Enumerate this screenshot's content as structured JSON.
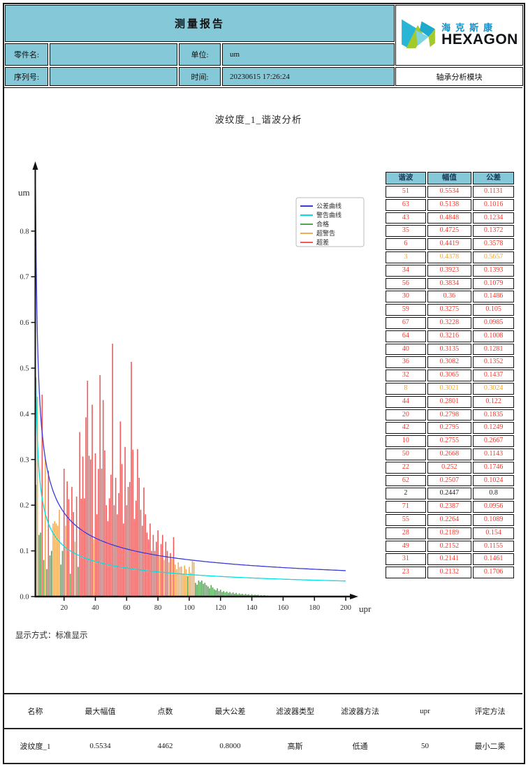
{
  "header": {
    "title": "测量报告",
    "logo": {
      "cn": "海克斯康",
      "en": "HEXAGON"
    },
    "fields": [
      {
        "label": "零件名:",
        "value": ""
      },
      {
        "label": "单位:",
        "value": "um"
      },
      {
        "label": "序列号:",
        "value": ""
      },
      {
        "label": "时间:",
        "value": "20230615 17:26:24"
      }
    ],
    "module": "轴承分析模块"
  },
  "display_mode": "显示方式：标准显示",
  "harmonic_table": {
    "headers": [
      "谐波",
      "幅值",
      "公差"
    ],
    "rows": [
      [
        "51",
        "0.5534",
        "0.1131",
        "over_tolerance"
      ],
      [
        "63",
        "0.5138",
        "0.1016",
        "over_tolerance"
      ],
      [
        "43",
        "0.4848",
        "0.1234",
        "over_tolerance"
      ],
      [
        "35",
        "0.4725",
        "0.1372",
        "over_tolerance"
      ],
      [
        "6",
        "0.4419",
        "0.3578",
        "over_tolerance"
      ],
      [
        "3",
        "0.4378",
        "0.5657",
        "over_warning"
      ],
      [
        "34",
        "0.3923",
        "0.1393",
        "over_tolerance"
      ],
      [
        "56",
        "0.3834",
        "0.1079",
        "over_tolerance"
      ],
      [
        "30",
        "0.36",
        "0.1486",
        "over_tolerance"
      ],
      [
        "59",
        "0.3275",
        "0.105",
        "over_tolerance"
      ],
      [
        "67",
        "0.3228",
        "0.0985",
        "over_tolerance"
      ],
      [
        "64",
        "0.3216",
        "0.1008",
        "over_tolerance"
      ],
      [
        "40",
        "0.3135",
        "0.1281",
        "over_tolerance"
      ],
      [
        "36",
        "0.3082",
        "0.1352",
        "over_tolerance"
      ],
      [
        "32",
        "0.3065",
        "0.1437",
        "over_tolerance"
      ],
      [
        "8",
        "0.3021",
        "0.3024",
        "over_warning"
      ],
      [
        "44",
        "0.2801",
        "0.122",
        "over_tolerance"
      ],
      [
        "20",
        "0.2798",
        "0.1835",
        "over_tolerance"
      ],
      [
        "42",
        "0.2795",
        "0.1249",
        "over_tolerance"
      ],
      [
        "10",
        "0.2755",
        "0.2667",
        "over_tolerance"
      ],
      [
        "50",
        "0.2668",
        "0.1143",
        "over_tolerance"
      ],
      [
        "22",
        "0.252",
        "0.1746",
        "over_tolerance"
      ],
      [
        "62",
        "0.2507",
        "0.1024",
        "over_tolerance"
      ],
      [
        "2",
        "0.2447",
        "0.8",
        "pass"
      ],
      [
        "71",
        "0.2387",
        "0.0956",
        "over_tolerance"
      ],
      [
        "55",
        "0.2264",
        "0.1089",
        "over_tolerance"
      ],
      [
        "28",
        "0.2189",
        "0.154",
        "over_tolerance"
      ],
      [
        "49",
        "0.2152",
        "0.1155",
        "over_tolerance"
      ],
      [
        "31",
        "0.2141",
        "0.1461",
        "over_tolerance"
      ],
      [
        "23",
        "0.2132",
        "0.1706",
        "over_tolerance"
      ]
    ]
  },
  "summary_table": {
    "headers": [
      "名称",
      "最大幅值",
      "点数",
      "最大公差",
      "滤波器类型",
      "滤波器方法",
      "upr",
      "评定方法"
    ],
    "row": [
      "波纹度_1",
      "0.5534",
      "4462",
      "0.8000",
      "高斯",
      "低通",
      "50",
      "最小二乘"
    ]
  },
  "chart_data": {
    "type": "bar",
    "title": "波纹度_1_谐波分析",
    "xlabel": "upr",
    "ylabel": "um",
    "xlim": [
      0,
      200
    ],
    "ylim": [
      0,
      0.9
    ],
    "x_ticks": [
      20,
      40,
      60,
      80,
      100,
      120,
      140,
      160,
      180,
      200
    ],
    "y_tick_labels": [
      "0.0",
      "0.1",
      "0.2",
      "0.3",
      "0.4",
      "0.5",
      "0.6",
      "0.7",
      "0.8"
    ],
    "legend": [
      {
        "label": "公差曲线",
        "color": "#3a3ad9"
      },
      {
        "label": "警告曲线",
        "color": "#00e2e2"
      },
      {
        "label": "合格",
        "color": "#55a355"
      },
      {
        "label": "超警告",
        "color": "#f3ab57"
      },
      {
        "label": "超差",
        "color": "#ef5b5b"
      }
    ],
    "tolerance_curve": {
      "formula": "T(n)=max_tolerance/sqrt(n-1)",
      "max_tolerance": 0.8,
      "color": "#3a3ad9"
    },
    "warning_curve": {
      "formula": "W(n)=ratio*T(n)",
      "ratio": 0.6,
      "color": "#00e2e2"
    },
    "bar_colors": {
      "pass": "#55a355",
      "over_warning": "#f3ab57",
      "over_tolerance": "#ef5b5b"
    },
    "bars": [
      [
        2,
        0.2447
      ],
      [
        3,
        0.4378
      ],
      [
        4,
        0.135
      ],
      [
        5,
        0.14
      ],
      [
        6,
        0.4419
      ],
      [
        7,
        0.08
      ],
      [
        8,
        0.3021
      ],
      [
        9,
        0.06
      ],
      [
        10,
        0.2755
      ],
      [
        11,
        0.09
      ],
      [
        12,
        0.1
      ],
      [
        13,
        0.16
      ],
      [
        14,
        0.165
      ],
      [
        15,
        0.16
      ],
      [
        16,
        0.155
      ],
      [
        17,
        0.19
      ],
      [
        18,
        0.07
      ],
      [
        19,
        0.1
      ],
      [
        20,
        0.2798
      ],
      [
        21,
        0.155
      ],
      [
        22,
        0.252
      ],
      [
        23,
        0.2132
      ],
      [
        24,
        0.05
      ],
      [
        25,
        0.24
      ],
      [
        26,
        0.185
      ],
      [
        27,
        0.12
      ],
      [
        28,
        0.2189
      ],
      [
        29,
        0.065
      ],
      [
        30,
        0.36
      ],
      [
        31,
        0.2141
      ],
      [
        32,
        0.3065
      ],
      [
        33,
        0.215
      ],
      [
        34,
        0.3923
      ],
      [
        35,
        0.4725
      ],
      [
        36,
        0.3082
      ],
      [
        37,
        0.3
      ],
      [
        38,
        0.42
      ],
      [
        39,
        0.125
      ],
      [
        40,
        0.3135
      ],
      [
        41,
        0.18
      ],
      [
        42,
        0.2795
      ],
      [
        43,
        0.4848
      ],
      [
        44,
        0.2801
      ],
      [
        45,
        0.43
      ],
      [
        46,
        0.32
      ],
      [
        47,
        0.2
      ],
      [
        48,
        0.165
      ],
      [
        49,
        0.2152
      ],
      [
        50,
        0.2668
      ],
      [
        51,
        0.5534
      ],
      [
        52,
        0.2
      ],
      [
        53,
        0.26
      ],
      [
        54,
        0.18
      ],
      [
        55,
        0.2264
      ],
      [
        56,
        0.3834
      ],
      [
        57,
        0.29
      ],
      [
        58,
        0.16
      ],
      [
        59,
        0.3275
      ],
      [
        60,
        0.2
      ],
      [
        61,
        0.24
      ],
      [
        62,
        0.2507
      ],
      [
        63,
        0.5138
      ],
      [
        64,
        0.3216
      ],
      [
        65,
        0.17
      ],
      [
        66,
        0.21
      ],
      [
        67,
        0.3228
      ],
      [
        68,
        0.26
      ],
      [
        69,
        0.19
      ],
      [
        70,
        0.155
      ],
      [
        71,
        0.2387
      ],
      [
        72,
        0.18
      ],
      [
        73,
        0.14
      ],
      [
        74,
        0.125
      ],
      [
        75,
        0.16
      ],
      [
        76,
        0.1
      ],
      [
        77,
        0.135
      ],
      [
        78,
        0.1
      ],
      [
        79,
        0.12
      ],
      [
        80,
        0.145
      ],
      [
        81,
        0.088
      ],
      [
        82,
        0.115
      ],
      [
        83,
        0.135
      ],
      [
        84,
        0.08
      ],
      [
        85,
        0.12
      ],
      [
        86,
        0.1
      ],
      [
        87,
        0.075
      ],
      [
        88,
        0.095
      ],
      [
        89,
        0.083
      ],
      [
        90,
        0.13
      ],
      [
        91,
        0.07
      ],
      [
        92,
        0.06
      ],
      [
        93,
        0.075
      ],
      [
        94,
        0.065
      ],
      [
        95,
        0.066
      ],
      [
        96,
        0.05
      ],
      [
        97,
        0.068
      ],
      [
        98,
        0.06
      ],
      [
        99,
        0.045
      ],
      [
        100,
        0.065
      ],
      [
        101,
        0.052
      ],
      [
        102,
        0.078
      ],
      [
        103,
        0.075
      ],
      [
        104,
        0.03
      ],
      [
        105,
        0.026
      ],
      [
        106,
        0.035
      ],
      [
        107,
        0.032
      ],
      [
        108,
        0.035
      ],
      [
        109,
        0.028
      ],
      [
        110,
        0.03
      ],
      [
        111,
        0.025
      ],
      [
        112,
        0.022
      ],
      [
        113,
        0.018
      ],
      [
        114,
        0.025
      ],
      [
        115,
        0.02
      ],
      [
        116,
        0.016
      ],
      [
        117,
        0.014
      ],
      [
        118,
        0.018
      ],
      [
        119,
        0.012
      ],
      [
        120,
        0.015
      ],
      [
        121,
        0.01
      ],
      [
        122,
        0.012
      ],
      [
        123,
        0.009
      ],
      [
        124,
        0.011
      ],
      [
        125,
        0.008
      ],
      [
        126,
        0.01
      ],
      [
        127,
        0.007
      ],
      [
        128,
        0.009
      ],
      [
        129,
        0.006
      ],
      [
        130,
        0.008
      ],
      [
        131,
        0.005
      ],
      [
        132,
        0.007
      ],
      [
        133,
        0.005
      ],
      [
        134,
        0.006
      ],
      [
        135,
        0.004
      ],
      [
        136,
        0.006
      ],
      [
        137,
        0.004
      ],
      [
        138,
        0.005
      ],
      [
        139,
        0.003
      ],
      [
        140,
        0.005
      ],
      [
        141,
        0.003
      ],
      [
        142,
        0.004
      ],
      [
        143,
        0.003
      ],
      [
        144,
        0.004
      ],
      [
        145,
        0.002
      ],
      [
        146,
        0.003
      ],
      [
        147,
        0.002
      ],
      [
        148,
        0.003
      ],
      [
        149,
        0.002
      ],
      [
        150,
        0.002
      ]
    ]
  },
  "colors": {
    "teal": "#85c8d7",
    "logo_blue": "#1590c8",
    "logo_cyan": "#29b5d5",
    "logo_lime": "#a4c92d"
  }
}
